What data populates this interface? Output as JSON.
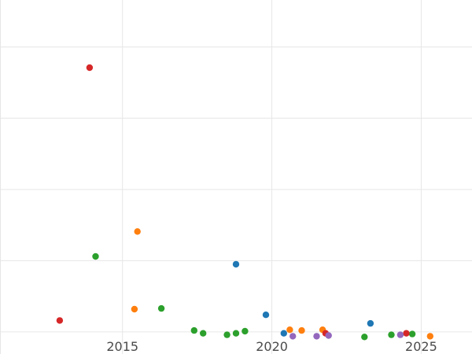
{
  "chart_data": {
    "type": "scatter",
    "title": "",
    "xlabel": "",
    "ylabel": "",
    "grid": true,
    "legend": "none",
    "background_color": "#ffffff",
    "grid_color": "#e6e6e6",
    "spine_color": "#e6e6e6",
    "tick_label_color": "#4a4a4a",
    "tick_font_size_px": 16,
    "marker_radius_px": 4.2,
    "x_ticks": [
      2015,
      2020,
      2025
    ],
    "x_tick_labels": [
      "2015",
      "2020",
      "2025"
    ],
    "xlim": [
      2010.9,
      2026.7
    ],
    "ylim": [
      -0.31,
      4.66
    ],
    "y_gridlines": [
      0,
      1,
      2,
      3,
      4
    ],
    "y_tick_labels_visible": false,
    "note": "y-axis tick labels are cropped out of view; y values are in gridline units (one unit per horizontal gridline, bottom gridline = 0)",
    "series": [
      {
        "name": "blue",
        "color": "#1f77b4",
        "points": [
          [
            2018.8,
            0.95
          ],
          [
            2019.8,
            0.24
          ],
          [
            2020.4,
            -0.02
          ],
          [
            2023.3,
            0.12
          ]
        ]
      },
      {
        "name": "orange",
        "color": "#ff7f0e",
        "points": [
          [
            2015.5,
            1.41
          ],
          [
            2015.4,
            0.32
          ],
          [
            2020.6,
            0.03
          ],
          [
            2021.0,
            0.02
          ],
          [
            2021.7,
            0.03
          ],
          [
            2025.3,
            -0.06
          ]
        ]
      },
      {
        "name": "green",
        "color": "#2ca02c",
        "points": [
          [
            2014.1,
            1.06
          ],
          [
            2016.3,
            0.33
          ],
          [
            2017.4,
            0.02
          ],
          [
            2017.7,
            -0.02
          ],
          [
            2018.5,
            -0.04
          ],
          [
            2018.8,
            -0.02
          ],
          [
            2019.1,
            0.01
          ],
          [
            2023.1,
            -0.07
          ],
          [
            2024.0,
            -0.04
          ],
          [
            2024.7,
            -0.03
          ]
        ]
      },
      {
        "name": "red",
        "color": "#d62728",
        "points": [
          [
            2013.9,
            3.71
          ],
          [
            2012.9,
            0.16
          ],
          [
            2021.8,
            -0.02
          ],
          [
            2024.5,
            -0.02
          ]
        ]
      },
      {
        "name": "purple",
        "color": "#9467bd",
        "points": [
          [
            2020.7,
            -0.06
          ],
          [
            2021.5,
            -0.06
          ],
          [
            2021.9,
            -0.05
          ],
          [
            2024.3,
            -0.04
          ]
        ]
      }
    ]
  }
}
